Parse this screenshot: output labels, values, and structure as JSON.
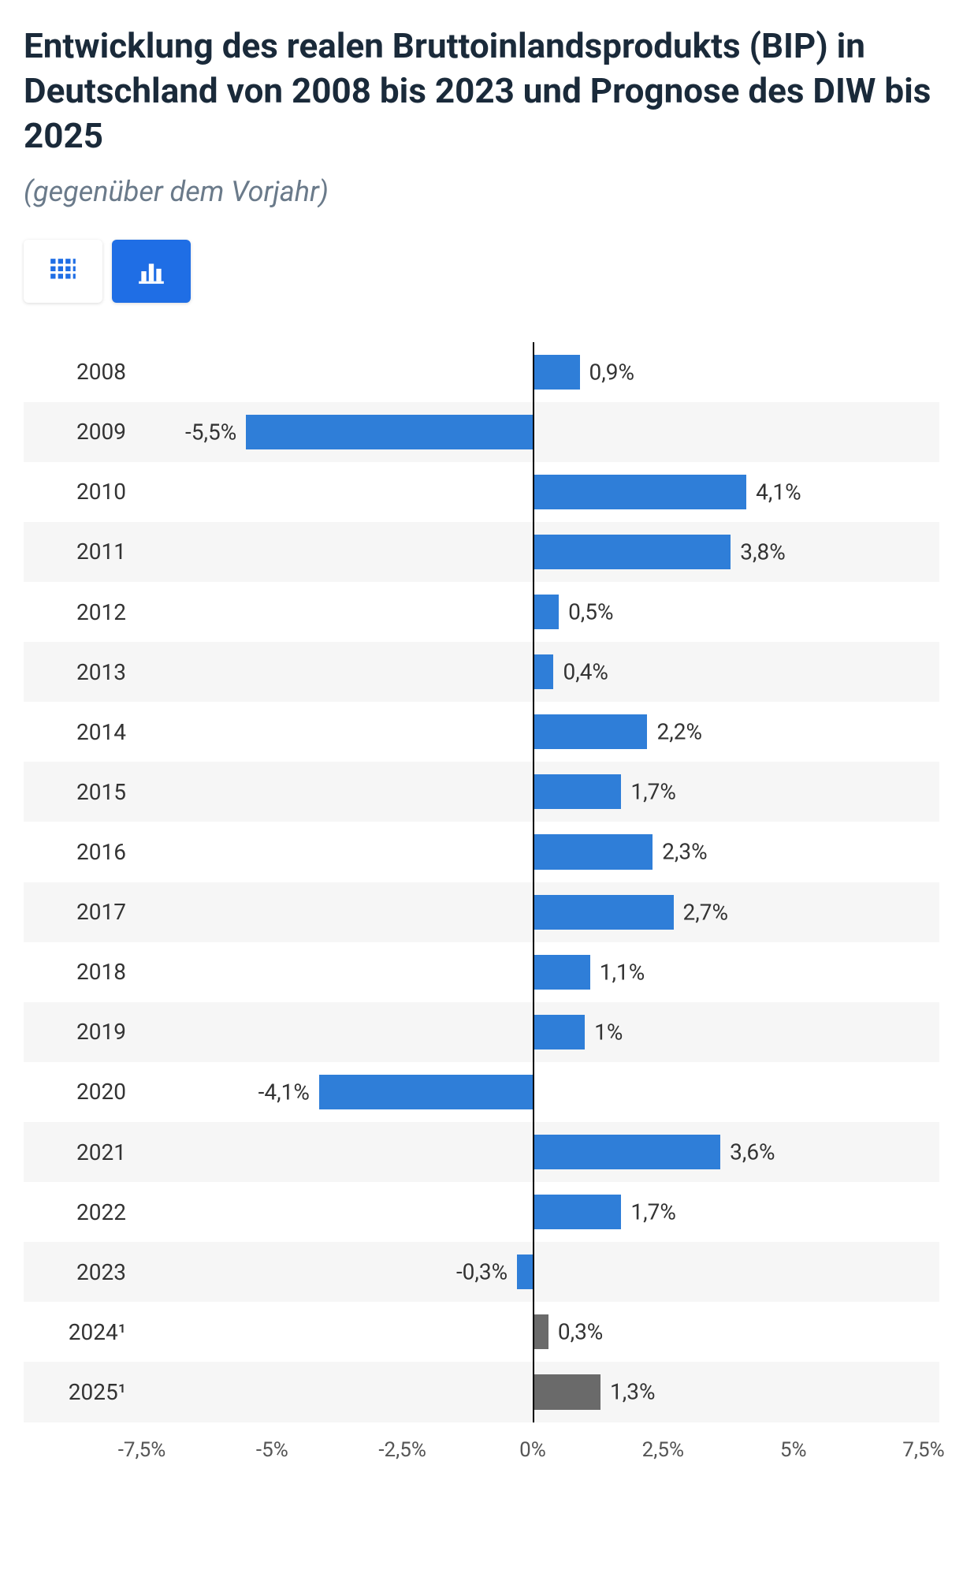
{
  "title": "Entwicklung des realen Bruttoinlandsprodukts (BIP) in Deutschland von 2008 bis 2023 und Prognose des DIW bis 2025",
  "subtitle": "(gegenüber dem Vorjahr)",
  "view_toggle": {
    "table_icon": "table-grid",
    "chart_icon": "bar-chart",
    "active": "chart"
  },
  "chart": {
    "type": "bar-horizontal",
    "x_min": -7.5,
    "x_max": 7.5,
    "x_ticks": [
      -7.5,
      -5,
      -2.5,
      0,
      2.5,
      5,
      7.5
    ],
    "x_tick_labels": [
      "-7,5%",
      "-5%",
      "-2,5%",
      "0%",
      "2,5%",
      "5%",
      "7,5%"
    ],
    "bar_color_actual": "#2f7ed8",
    "bar_color_forecast": "#6a6a6a",
    "row_stripe_even": "#f6f6f6",
    "row_stripe_odd": "#ffffff",
    "grid_color": "#d0d0d0",
    "zero_line_color": "#000000",
    "label_color": "#333333",
    "label_fontsize": 28,
    "tick_fontsize": 26,
    "data": [
      {
        "year": "2008",
        "value": 0.9,
        "label": "0,9%",
        "forecast": false
      },
      {
        "year": "2009",
        "value": -5.5,
        "label": "-5,5%",
        "forecast": false
      },
      {
        "year": "2010",
        "value": 4.1,
        "label": "4,1%",
        "forecast": false
      },
      {
        "year": "2011",
        "value": 3.8,
        "label": "3,8%",
        "forecast": false
      },
      {
        "year": "2012",
        "value": 0.5,
        "label": "0,5%",
        "forecast": false
      },
      {
        "year": "2013",
        "value": 0.4,
        "label": "0,4%",
        "forecast": false
      },
      {
        "year": "2014",
        "value": 2.2,
        "label": "2,2%",
        "forecast": false
      },
      {
        "year": "2015",
        "value": 1.7,
        "label": "1,7%",
        "forecast": false
      },
      {
        "year": "2016",
        "value": 2.3,
        "label": "2,3%",
        "forecast": false
      },
      {
        "year": "2017",
        "value": 2.7,
        "label": "2,7%",
        "forecast": false
      },
      {
        "year": "2018",
        "value": 1.1,
        "label": "1,1%",
        "forecast": false
      },
      {
        "year": "2019",
        "value": 1.0,
        "label": "1%",
        "forecast": false
      },
      {
        "year": "2020",
        "value": -4.1,
        "label": "-4,1%",
        "forecast": false
      },
      {
        "year": "2021",
        "value": 3.6,
        "label": "3,6%",
        "forecast": false
      },
      {
        "year": "2022",
        "value": 1.7,
        "label": "1,7%",
        "forecast": false
      },
      {
        "year": "2023",
        "value": -0.3,
        "label": "-0,3%",
        "forecast": false
      },
      {
        "year": "2024¹",
        "value": 0.3,
        "label": "0,3%",
        "forecast": true
      },
      {
        "year": "2025¹",
        "value": 1.3,
        "label": "1,3%",
        "forecast": true
      }
    ]
  }
}
